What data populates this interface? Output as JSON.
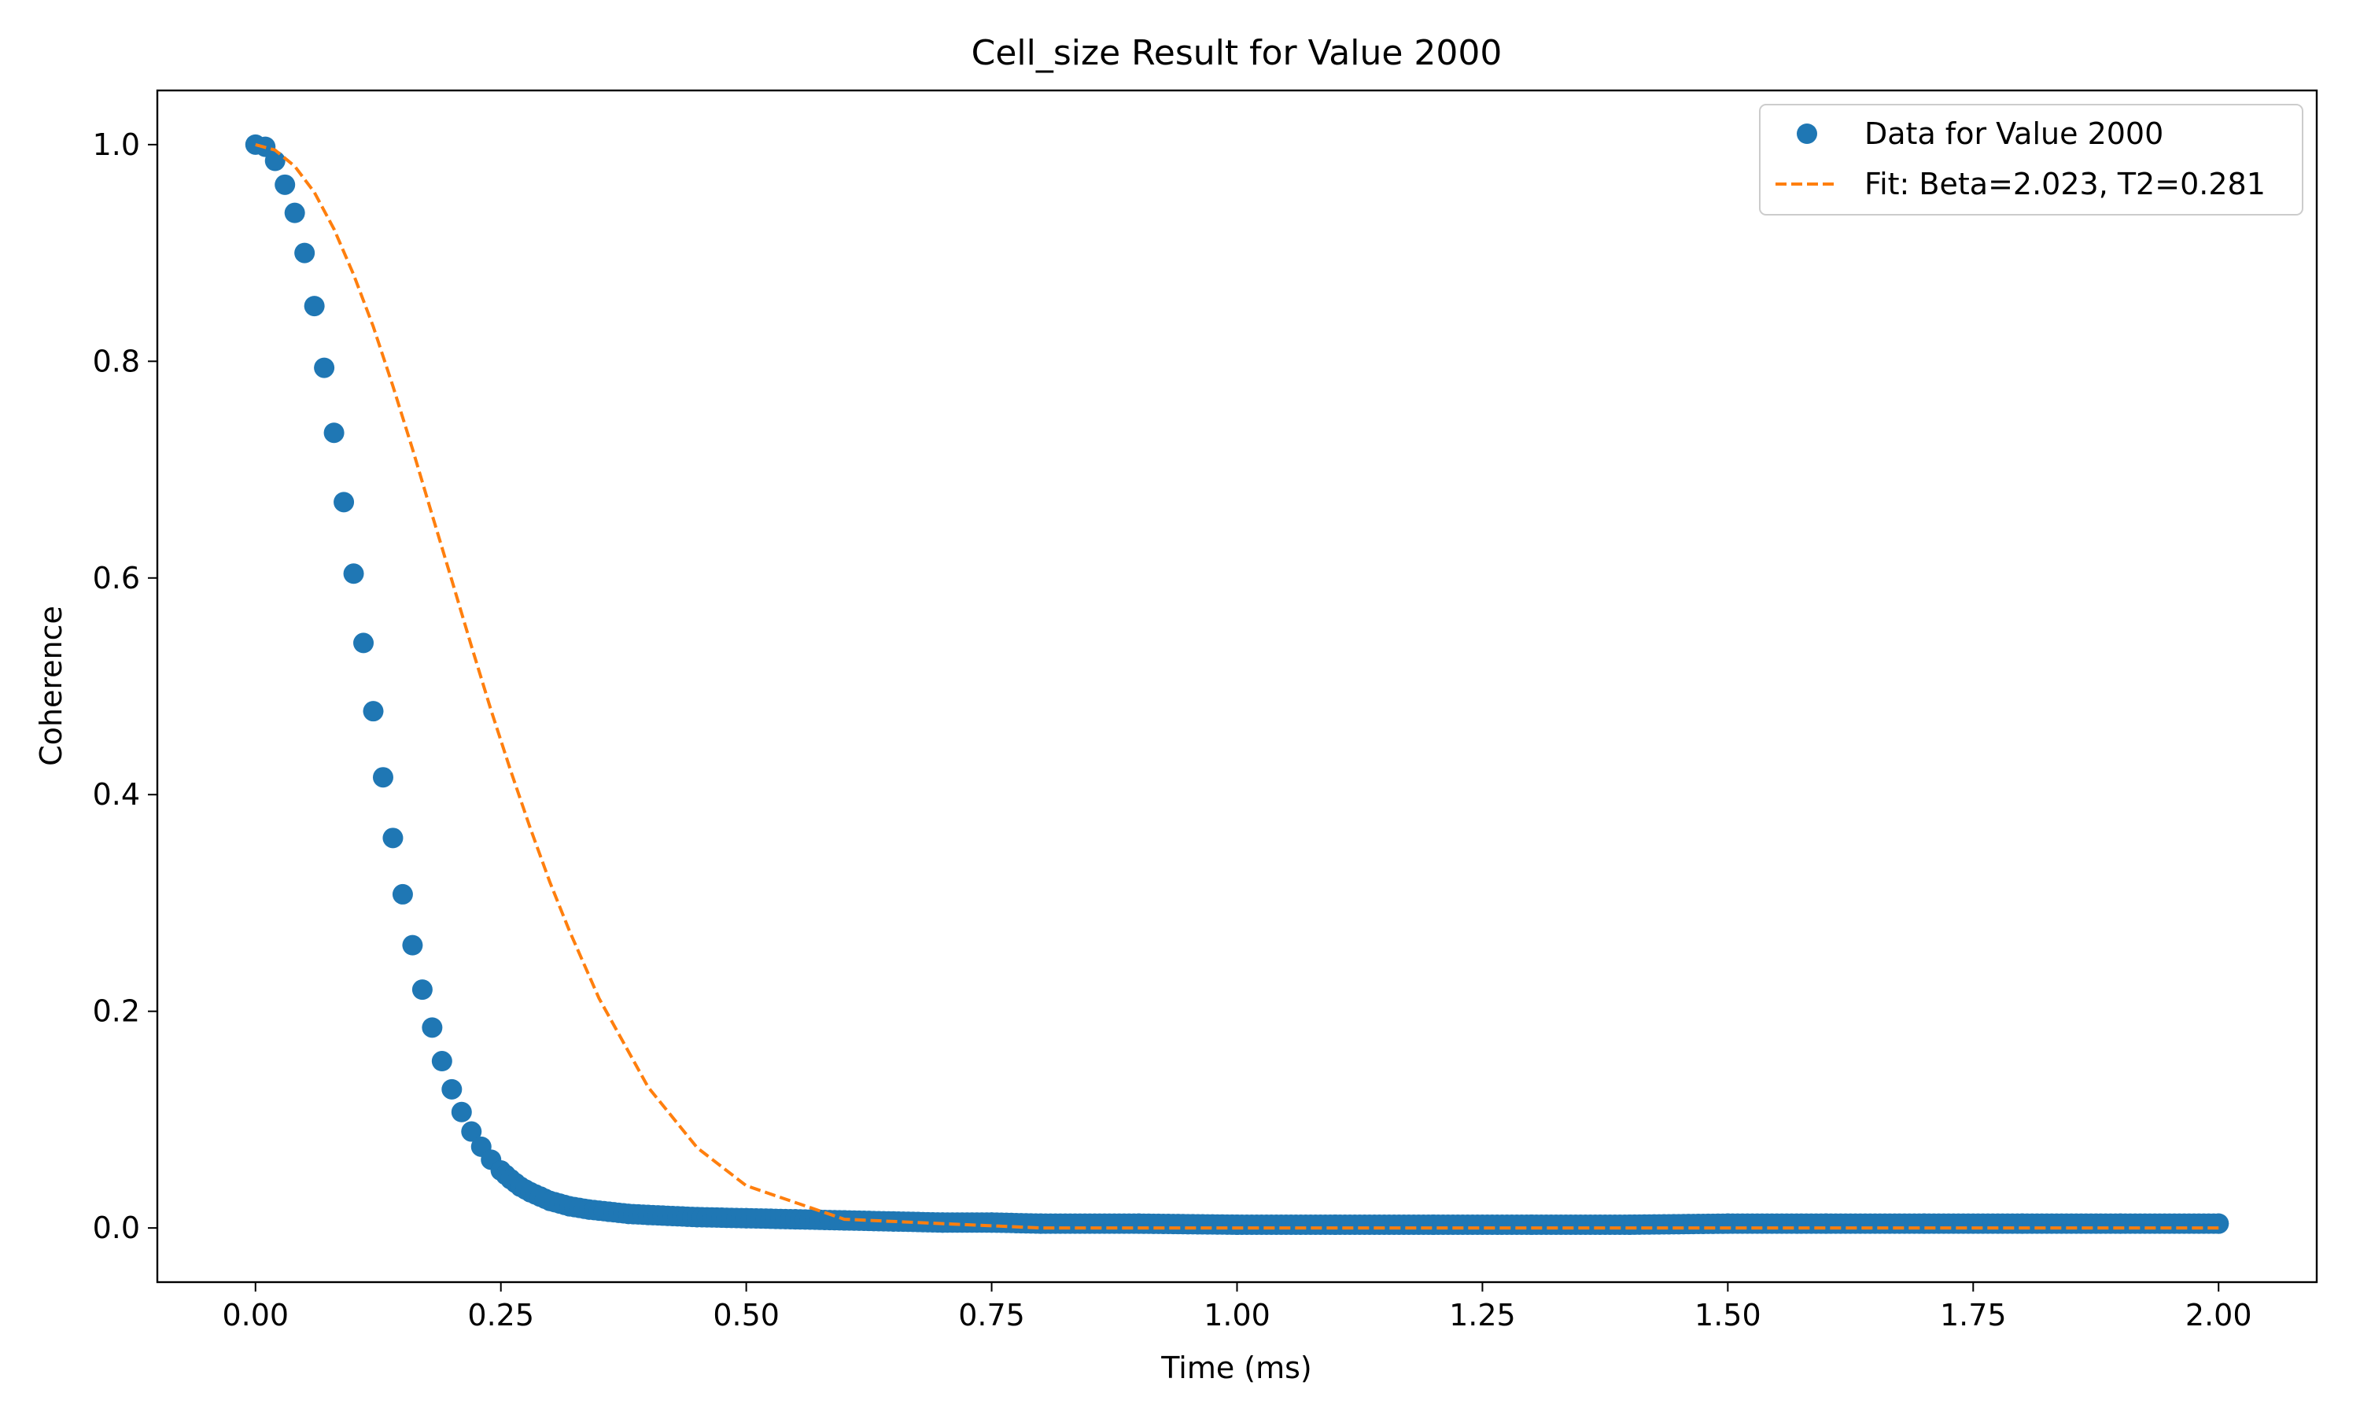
{
  "chart_data": {
    "type": "scatter",
    "title": "Cell_size Result for Value 2000",
    "xlabel": "Time (ms)",
    "ylabel": "Coherence",
    "xlim": [
      -0.1,
      2.1
    ],
    "ylim": [
      -0.05,
      1.05
    ],
    "xticks": [
      0.0,
      0.25,
      0.5,
      0.75,
      1.0,
      1.25,
      1.5,
      1.75,
      2.0
    ],
    "xtick_labels": [
      "0.00",
      "0.25",
      "0.50",
      "0.75",
      "1.00",
      "1.25",
      "1.50",
      "1.75",
      "2.00"
    ],
    "yticks": [
      0.0,
      0.2,
      0.4,
      0.6,
      0.8,
      1.0
    ],
    "ytick_labels": [
      "0.0",
      "0.2",
      "0.4",
      "0.6",
      "0.8",
      "1.0"
    ],
    "grid": false,
    "legend_position": "top-right",
    "colors": {
      "data": "#1f77b4",
      "fit": "#ff7f0e"
    },
    "series": [
      {
        "name": "Data for Value 2000",
        "kind": "markers",
        "x": [
          0.0,
          0.01,
          0.02,
          0.03,
          0.04,
          0.05,
          0.06,
          0.07,
          0.08,
          0.09,
          0.1,
          0.11,
          0.12,
          0.13,
          0.14,
          0.15,
          0.16,
          0.17,
          0.18,
          0.19,
          0.2,
          0.21,
          0.22,
          0.23,
          0.24,
          0.25,
          0.26,
          0.27,
          0.28,
          0.29,
          0.3,
          0.32,
          0.34,
          0.36,
          0.38,
          0.4,
          0.45,
          0.5,
          0.55,
          0.6,
          0.65,
          0.7,
          0.75,
          0.8,
          0.9,
          1.0,
          1.1,
          1.2,
          1.3,
          1.4,
          1.5,
          1.6,
          1.7,
          1.8,
          1.9,
          2.0
        ],
        "y": [
          1.0,
          0.998,
          0.985,
          0.963,
          0.937,
          0.9,
          0.851,
          0.794,
          0.734,
          0.67,
          0.604,
          0.54,
          0.477,
          0.416,
          0.36,
          0.308,
          0.261,
          0.22,
          0.185,
          0.154,
          0.128,
          0.107,
          0.089,
          0.075,
          0.063,
          0.053,
          0.045,
          0.038,
          0.033,
          0.029,
          0.025,
          0.02,
          0.017,
          0.015,
          0.013,
          0.012,
          0.01,
          0.009,
          0.008,
          0.007,
          0.006,
          0.005,
          0.005,
          0.004,
          0.004,
          0.003,
          0.003,
          0.003,
          0.003,
          0.003,
          0.004,
          0.004,
          0.004,
          0.004,
          0.004,
          0.004
        ]
      },
      {
        "name": "Fit: Beta=2.023, T2=0.281",
        "kind": "dashed-line",
        "x": [
          0.0,
          0.02,
          0.04,
          0.06,
          0.08,
          0.1,
          0.12,
          0.14,
          0.16,
          0.18,
          0.2,
          0.22,
          0.24,
          0.26,
          0.28,
          0.3,
          0.32,
          0.35,
          0.4,
          0.45,
          0.5,
          0.6,
          0.8,
          1.0,
          1.25,
          1.5,
          1.75,
          2.0
        ],
        "y": [
          1.0,
          0.995,
          0.98,
          0.956,
          0.922,
          0.88,
          0.832,
          0.777,
          0.719,
          0.658,
          0.598,
          0.537,
          0.478,
          0.422,
          0.369,
          0.319,
          0.274,
          0.212,
          0.13,
          0.074,
          0.039,
          0.008,
          0.0,
          0.0,
          0.0,
          0.0,
          0.0,
          0.0
        ]
      }
    ]
  }
}
